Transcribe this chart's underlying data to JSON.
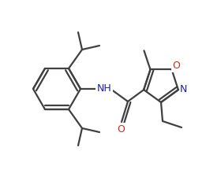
{
  "bg_color": "#ffffff",
  "line_color": "#404040",
  "bond_width": 1.6,
  "atom_colors": {
    "N": "#2020a0",
    "O": "#c03020",
    "C": "#404040"
  },
  "font_size_nh": 9,
  "font_size_o": 9,
  "font_size_n": 9,
  "fig_width": 2.8,
  "fig_height": 2.25,
  "dpi": 100
}
